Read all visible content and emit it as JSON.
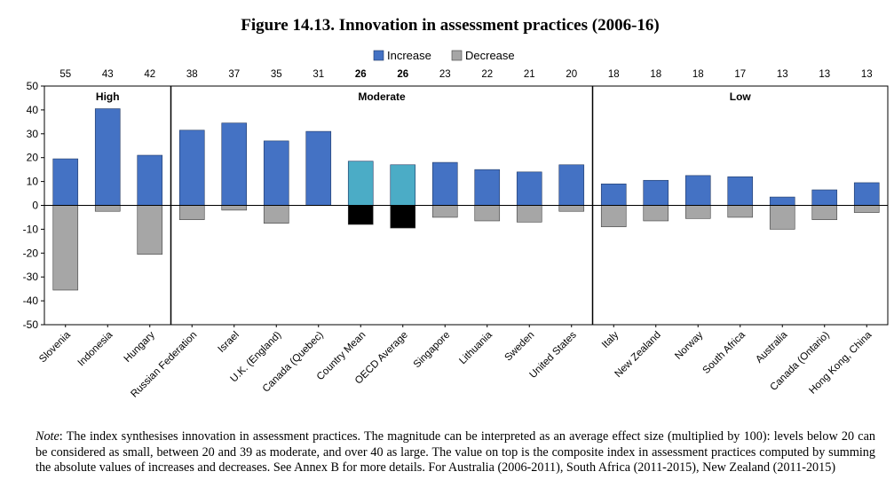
{
  "chart_data": {
    "type": "bar",
    "title": "Figure 14.13. Innovation in assessment practices (2006-16)",
    "legend": [
      "Increase",
      "Decrease"
    ],
    "ylim": [
      -50,
      50
    ],
    "yticks": [
      50,
      40,
      30,
      20,
      10,
      0,
      -10,
      -20,
      -30,
      -40,
      -50
    ],
    "groups": [
      {
        "label": "High",
        "from": 0,
        "to": 2
      },
      {
        "label": "Moderate",
        "from": 3,
        "to": 12
      },
      {
        "label": "Low",
        "from": 13,
        "to": 19
      }
    ],
    "categories": [
      "Slovenia",
      "Indonesia",
      "Hungary",
      "Russian Federation",
      "Israel",
      "U.K. (England)",
      "Canada (Quebec)",
      "Country Mean",
      "OECD Average",
      "Singapore",
      "Lithuania",
      "Sweden",
      "United States",
      "Italy",
      "New Zealand",
      "Norway",
      "South Africa",
      "Australia",
      "Canada (Ontario)",
      "Hong Kong, China"
    ],
    "top_values": [
      "55",
      "43",
      "42",
      "38",
      "37",
      "35",
      "31",
      "26",
      "26",
      "23",
      "22",
      "21",
      "20",
      "18",
      "18",
      "18",
      "17",
      "13",
      "13",
      "13"
    ],
    "highlight_indices": [
      7,
      8
    ],
    "series": [
      {
        "name": "Increase",
        "values": [
          19.5,
          40.5,
          21,
          31.5,
          34.5,
          27,
          31,
          18.5,
          17,
          18,
          15,
          14,
          17,
          9,
          10.5,
          12.5,
          12,
          3.5,
          6.5,
          9.5
        ]
      },
      {
        "name": "Decrease",
        "values": [
          -35.5,
          -2.5,
          -20.5,
          -6,
          -2,
          -7.5,
          0,
          -8,
          -9.5,
          -5,
          -6.5,
          -7,
          -2.5,
          -9,
          -6.5,
          -5.5,
          -5,
          -10,
          -6,
          -3
        ]
      }
    ],
    "colors": {
      "increase": "#4472C4",
      "decrease": "#A6A6A6",
      "increase_highlight": "#4BACC6",
      "decrease_highlight": "#000000"
    }
  },
  "note": {
    "label": "Note",
    "text": ": The index synthesises innovation in assessment practices. The magnitude can be interpreted as an average effect size (multiplied by 100): levels below 20 can be considered as small, between 20 and 39 as moderate, and over 40 as large. The value on top is the composite index in assessment practices computed by summing the absolute values of increases and decreases. See Annex B for more details. For Australia (2006-2011), South Africa (2011-2015), New Zealand (2011-2015)"
  }
}
